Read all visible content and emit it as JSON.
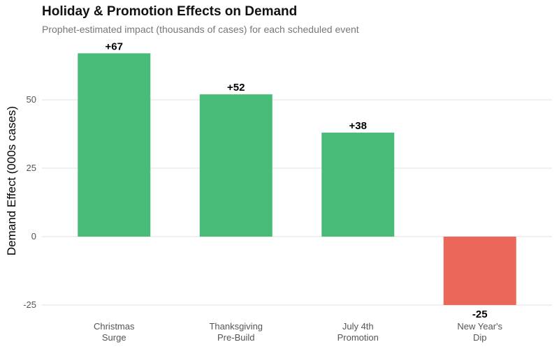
{
  "chart_data": {
    "type": "bar",
    "title": "Holiday & Promotion Effects on Demand",
    "subtitle": "Prophet-estimated impact (thousands of cases) for each scheduled event",
    "xlabel": "",
    "ylabel": "Demand Effect (000s cases)",
    "categories": [
      [
        "Christmas",
        "Surge"
      ],
      [
        "Thanksgiving",
        "Pre-Build"
      ],
      [
        "July 4th",
        "Promotion"
      ],
      [
        "New Year's",
        "Dip"
      ]
    ],
    "values": [
      67,
      52,
      38,
      -25
    ],
    "data_labels": [
      "+67",
      "+52",
      "+38",
      "-25"
    ],
    "ylim": [
      -27,
      70
    ],
    "yticks": [
      -25,
      0,
      25,
      50
    ],
    "grid": true,
    "colors": {
      "positive": "#48BB78",
      "negative": "#EB6759"
    }
  }
}
